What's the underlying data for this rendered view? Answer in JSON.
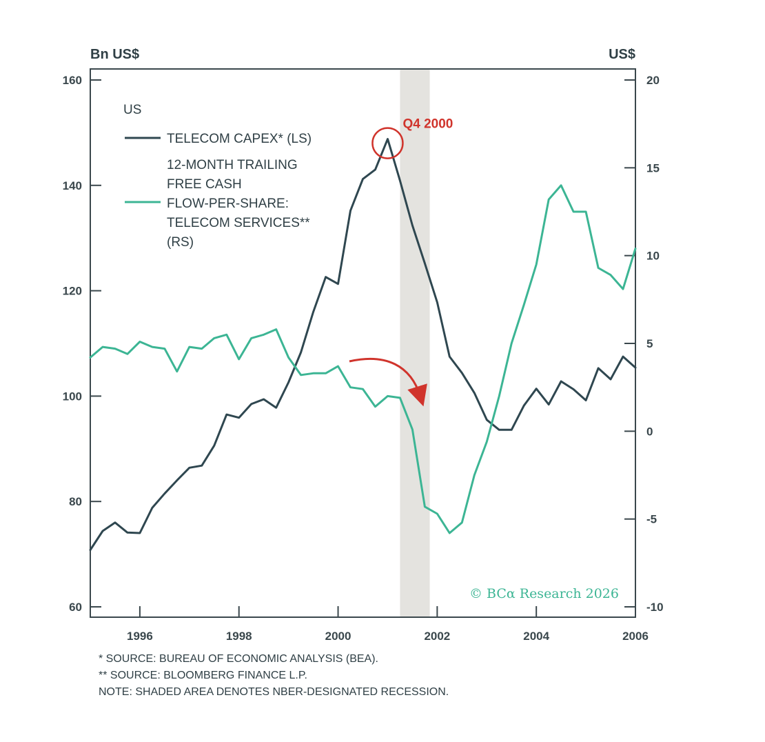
{
  "chart_data": {
    "type": "line",
    "left_axis_label": "Bn US$",
    "right_axis_label": "US$",
    "left_ylim": [
      60,
      160
    ],
    "right_ylim": [
      -10,
      20
    ],
    "left_ticks": [
      "160",
      "140",
      "120",
      "100",
      "80",
      "60"
    ],
    "left_tick_values": [
      160,
      140,
      120,
      100,
      80,
      60
    ],
    "right_ticks": [
      "20",
      "15",
      "10",
      "5",
      "0",
      "-5",
      "-10"
    ],
    "right_tick_values": [
      20,
      15,
      10,
      5,
      0,
      -5,
      -10
    ],
    "xlim": [
      1995.0,
      2006.0
    ],
    "x_ticks": [
      "1996",
      "1998",
      "2000",
      "2002",
      "2004",
      "2006"
    ],
    "x_tick_values": [
      1996,
      1998,
      2000,
      2002,
      2004,
      2006
    ],
    "legend_title": "US",
    "series": [
      {
        "name": "TELECOM CAPEX* (LS)",
        "name_lines": [
          "TELECOM CAPEX* (LS)"
        ],
        "axis": "left",
        "color": "#2f4750",
        "x": [
          1995.0,
          1995.25,
          1995.5,
          1995.75,
          1996.0,
          1996.25,
          1996.5,
          1996.75,
          1997.0,
          1997.25,
          1997.5,
          1997.75,
          1998.0,
          1998.25,
          1998.5,
          1998.75,
          1999.0,
          1999.25,
          1999.5,
          1999.75,
          2000.0,
          2000.25,
          2000.5,
          2000.75,
          2001.0,
          2001.25,
          2001.5,
          2001.75,
          2002.0,
          2002.25,
          2002.5,
          2002.75,
          2003.0,
          2003.25,
          2003.5,
          2003.75,
          2004.0,
          2004.25,
          2004.5,
          2004.75,
          2005.0,
          2005.25,
          2005.5,
          2005.75,
          2006.0
        ],
        "values": [
          70.8,
          74.4,
          76.0,
          74.1,
          74.0,
          78.8,
          81.5,
          84.0,
          86.4,
          86.8,
          90.6,
          96.5,
          95.9,
          98.5,
          99.4,
          97.8,
          102.6,
          108.3,
          116.0,
          122.6,
          121.3,
          135.2,
          141.2,
          143.0,
          148.8,
          140.9,
          132.4,
          125.2,
          117.8,
          107.5,
          104.4,
          100.6,
          95.5,
          93.6,
          93.6,
          98.2,
          101.4,
          98.4,
          102.8,
          101.3,
          99.2,
          105.3,
          103.2,
          107.5,
          105.4
        ]
      },
      {
        "name": "12-MONTH TRAILING FREE CASH FLOW-PER-SHARE: TELECOM SERVICES** (RS)",
        "name_lines": [
          "12-MONTH TRAILING",
          "FREE CASH",
          "FLOW-PER-SHARE:",
          "TELECOM SERVICES**",
          "(RS)"
        ],
        "axis": "right",
        "color": "#3cb594",
        "x": [
          1995.0,
          1995.25,
          1995.5,
          1995.75,
          1996.0,
          1996.25,
          1996.5,
          1996.75,
          1997.0,
          1997.25,
          1997.5,
          1997.75,
          1998.0,
          1998.25,
          1998.5,
          1998.75,
          1999.0,
          1999.25,
          1999.5,
          1999.75,
          2000.0,
          2000.25,
          2000.5,
          2000.75,
          2001.0,
          2001.25,
          2001.5,
          2001.75,
          2002.0,
          2002.25,
          2002.5,
          2002.75,
          2003.0,
          2003.25,
          2003.5,
          2003.75,
          2004.0,
          2004.25,
          2004.5,
          2004.75,
          2005.0,
          2005.25,
          2005.5,
          2005.75,
          2006.0
        ],
        "values": [
          4.2,
          4.8,
          4.7,
          4.4,
          5.1,
          4.8,
          4.7,
          3.4,
          4.8,
          4.7,
          5.3,
          5.5,
          4.1,
          5.3,
          5.5,
          5.8,
          4.2,
          3.2,
          3.3,
          3.3,
          3.7,
          2.5,
          2.4,
          1.4,
          2.0,
          1.9,
          0.1,
          -4.3,
          -4.7,
          -5.8,
          -5.2,
          -2.5,
          -0.6,
          2.0,
          5.0,
          7.2,
          9.5,
          13.2,
          14.0,
          12.5,
          12.5,
          9.3,
          8.9,
          8.1,
          10.4
        ]
      }
    ],
    "recession": [
      2001.25,
      2001.85
    ],
    "annotations": {
      "peak_label": "Q4 2000",
      "peak_x": 2001.0,
      "peak_y": 148.8
    },
    "copyright": "© BCα Research 2026"
  },
  "footnotes": [
    "*  SOURCE: BUREAU OF ECONOMIC ANALYSIS (BEA).",
    "** SOURCE: BLOOMBERG FINANCE L.P.",
    "NOTE: SHADED AREA DENOTES NBER-DESIGNATED RECESSION."
  ]
}
